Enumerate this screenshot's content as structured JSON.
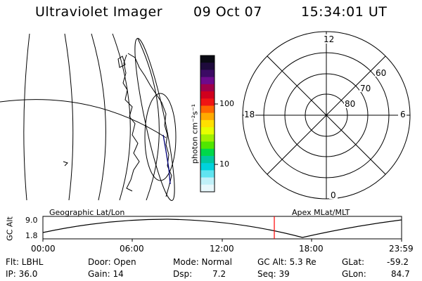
{
  "header": {
    "title": "Ultraviolet Imager",
    "date": "09 Oct 07",
    "time": "15:34:01 UT"
  },
  "colorbar": {
    "unit_label": "photon cm⁻²s⁻¹",
    "ticks": [
      "100",
      "10"
    ],
    "colors": [
      "#0a0a14",
      "#1e0a3c",
      "#3c0a64",
      "#6e0a8c",
      "#a0004a",
      "#d0001e",
      "#f01414",
      "#ff6600",
      "#ffaa00",
      "#ffe000",
      "#e6ff00",
      "#a0f000",
      "#50e600",
      "#00d84a",
      "#00c8a0",
      "#00d2dc",
      "#60e4f0",
      "#c0f0f8",
      "#e8f8fc"
    ]
  },
  "polar": {
    "mlt_labels": {
      "top": "12",
      "right": "6",
      "bottom": "0",
      "left": "18"
    },
    "lat_labels": [
      "80",
      "70",
      "60"
    ]
  },
  "timeline": {
    "geo_label": "Geographic Lat/Lon",
    "apex_label": "Apex MLat/MLT",
    "y_axis_label": "GC Alt",
    "y_ticks": [
      "9.0",
      "1.8"
    ],
    "x_ticks": [
      "00:00",
      "06:00",
      "12:00",
      "18:00",
      "23:59"
    ],
    "current_time_color": "#ff0000"
  },
  "info": {
    "flt": "Flt: LBHL",
    "ip": "IP: 36.0",
    "door": "Door: Open",
    "gain": "Gain: 14",
    "mode": "Mode: Normal",
    "dsp_label": "Dsp:",
    "dsp_value": "7.2",
    "gc_alt": "GC Alt: 5.3 Re",
    "seq": "Seq: 39",
    "glat_label": "GLat:",
    "glat_value": "-59.2",
    "glon_label": "GLon:",
    "glon_value": "84.7"
  }
}
